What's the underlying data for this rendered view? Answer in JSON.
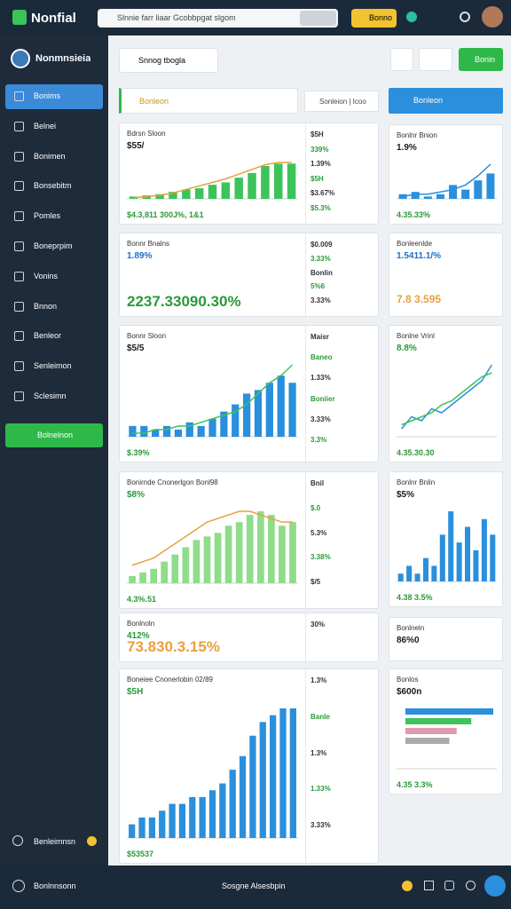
{
  "topbar": {
    "logo": "Nonfial",
    "search": "Slnnie farr liaar Gcobbpgat slgom",
    "button": "Bonno"
  },
  "sidebar": {
    "user": "Nonmnsieia",
    "nav": [
      "Bonims",
      "Belnei",
      "Bonimen",
      "Bonsebitm",
      "Pomles",
      "Boneprpim",
      "Vonins",
      "Bnnon",
      "Benleor",
      "Senleimon",
      "Sclesimn"
    ],
    "action": "Bolnelnon",
    "footer": "Benleimnsn"
  },
  "header": {
    "search": "Snnog tbogla",
    "button": "Bonin"
  },
  "toolbar": {
    "left": "Bonleon",
    "mid": "Sonleion | Icoo",
    "right": "Bonleon"
  },
  "left_cards": [
    {
      "title": "Bdrsn Sloon",
      "value": "$55/",
      "value_color": "#1a1a1a",
      "footer": "$4.3,811 300J%, 1&1",
      "chart": {
        "kind": "bar",
        "color": "#3cc45a",
        "values": [
          2,
          3,
          4,
          6,
          8,
          9,
          12,
          14,
          18,
          22,
          28,
          30,
          30
        ],
        "line": [
          1,
          2,
          3,
          5,
          8,
          11,
          14,
          17,
          21,
          25,
          29,
          31,
          31
        ],
        "line_color": "#e8a040"
      },
      "side": [
        "$5H",
        "339%",
        "1.39%",
        "$5H",
        "$3.67%",
        "$5.3%"
      ]
    },
    {
      "title": "Bonnr Bnalns",
      "value": "1.89%",
      "value_color": "#1a6fc9",
      "big": "2237.33090.30%",
      "big_color": "#2a9a3a",
      "side": [
        "$0.009",
        "3.33%",
        "Bonlin",
        "5%6",
        "3.33%"
      ]
    },
    {
      "title": "Bonnr Sloon",
      "value": "$5/5",
      "value_color": "#1a1a1a",
      "footer": "$.39%",
      "chart": {
        "kind": "bar",
        "color": "#2a8fdc",
        "values": [
          3,
          3,
          2,
          3,
          2,
          4,
          3,
          5,
          7,
          9,
          12,
          13,
          15,
          17,
          15
        ],
        "line": [
          1,
          1,
          2,
          2,
          3,
          3,
          4,
          5,
          6,
          7,
          9,
          12,
          15,
          17,
          20
        ],
        "line_color": "#3cc45a"
      },
      "side": [
        "Maisr",
        "Baneo",
        "1.33%",
        "Boniier",
        "3.33%",
        "3.3%"
      ]
    },
    {
      "title": "Bonirnde Cnonerlgon Bonl98",
      "value": "$8%",
      "value_color": "#2a9a3a",
      "footer": "4.3%.51",
      "chart": {
        "kind": "bar",
        "color": "#8fdc8a",
        "values": [
          2,
          3,
          4,
          6,
          8,
          10,
          12,
          13,
          14,
          16,
          17,
          19,
          20,
          19,
          16,
          17
        ],
        "line": [
          5,
          6,
          7,
          9,
          11,
          13,
          15,
          17,
          18,
          19,
          20,
          20,
          19,
          18,
          17,
          17
        ],
        "line_color": "#e8a040"
      },
      "side": [
        "Bnil",
        "$.0",
        "5.3%",
        "3.38%",
        "$/5"
      ]
    },
    {
      "title": "Bonlnoln",
      "value": "412%",
      "value_color": "#2a9a3a",
      "big": "73.830.3.15%",
      "big_color": "#e8a040",
      "side": [
        "30%"
      ]
    },
    {
      "title": "Boneiee Cnonerlobin 02/89",
      "value": "$5H",
      "value_color": "#2a9a3a",
      "footer": "$53537",
      "chart": {
        "kind": "bar",
        "color": "#2a8fdc",
        "values": [
          2,
          3,
          3,
          4,
          5,
          5,
          6,
          6,
          7,
          8,
          10,
          12,
          15,
          17,
          18,
          19,
          19
        ]
      },
      "side": [
        "1.3%",
        "Banle",
        "1.3%",
        "1.33%",
        "3.33%"
      ]
    }
  ],
  "right_cards": [
    {
      "title": "Bonlnr Bnion",
      "value": "1.9%",
      "value_color": "#1a1a1a",
      "footer": "4.35.33%",
      "chart": {
        "kind": "bar",
        "color": "#2a8fdc",
        "values": [
          2,
          3,
          1,
          2,
          6,
          4,
          8,
          11
        ],
        "line": [
          1,
          2,
          2,
          3,
          4,
          6,
          10,
          15
        ],
        "line_color": "#2a8fdc"
      }
    },
    {
      "title": "Bonleenlde",
      "value": "1.5411.1/%",
      "value_color": "#1a6fc9",
      "big": "7.8 3.595",
      "big_color": "#e8a040"
    },
    {
      "title": "Bonlne Vrinl",
      "value": "8.8%",
      "value_color": "#2a9a3a",
      "footer": "4.35.30.30",
      "chart": {
        "kind": "line",
        "color": "#2a8fdc",
        "values": [
          2,
          5,
          4,
          7,
          6,
          8,
          10,
          12,
          14,
          18
        ],
        "line": [
          3,
          4,
          5,
          6,
          8,
          9,
          11,
          13,
          15,
          16
        ],
        "line_color": "#3cc45a"
      }
    },
    {
      "title": "Bonlnr Bnlin",
      "value": "$5%",
      "value_color": "#1a1a1a",
      "footer": "4.38 3.5%",
      "chart": {
        "kind": "bar",
        "color": "#2a8fdc",
        "values": [
          1,
          2,
          1,
          3,
          2,
          6,
          9,
          5,
          7,
          4,
          8,
          6
        ]
      }
    },
    {
      "title": "Bonlneln",
      "value": "86%0",
      "value_color": "#1a1a1a"
    },
    {
      "title": "Bonlos",
      "value": "$600n",
      "value_color": "#1a1a1a",
      "footer": "4.35 3.3%",
      "chart": {
        "kind": "hbar",
        "color": "#2a8fdc",
        "values": [
          12,
          9,
          7,
          6
        ],
        "colors": [
          "#2a8fdc",
          "#3cc45a",
          "#e09ab0",
          "#aaaaaa"
        ]
      }
    }
  ],
  "bottombar": {
    "left": "Bonlnnsonn",
    "center": "Sosgne Alsesbpin"
  }
}
